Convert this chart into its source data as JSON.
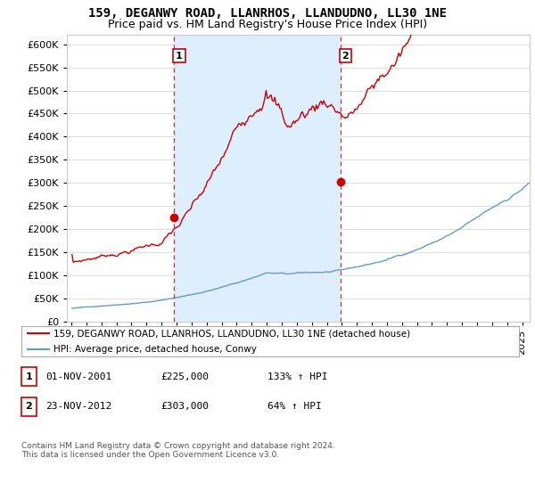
{
  "title": "159, DEGANWY ROAD, LLANRHOS, LLANDUDNO, LL30 1NE",
  "subtitle": "Price paid vs. HM Land Registry's House Price Index (HPI)",
  "ylim": [
    0,
    620000
  ],
  "yticks": [
    0,
    50000,
    100000,
    150000,
    200000,
    250000,
    300000,
    350000,
    400000,
    450000,
    500000,
    550000,
    600000
  ],
  "xlim_start": 1994.7,
  "xlim_end": 2025.5,
  "sale1_date": 2001.84,
  "sale1_price": 225000,
  "sale2_date": 2012.9,
  "sale2_price": 303000,
  "hpi_color": "#6699cc",
  "price_color": "#cc0000",
  "sale_dot_color": "#cc0000",
  "vline_color": "#cc0000",
  "shade_color": "#ddeeff",
  "background_color": "#ffffff",
  "grid_color": "#dddddd",
  "legend_label_price": "159, DEGANWY ROAD, LLANRHOS, LLANDUDNO, LL30 1NE (detached house)",
  "legend_label_hpi": "HPI: Average price, detached house, Conwy",
  "annotation1_label": "1",
  "annotation2_label": "2",
  "table_row1": [
    "1",
    "01-NOV-2001",
    "£225,000",
    "133% ↑ HPI"
  ],
  "table_row2": [
    "2",
    "23-NOV-2012",
    "£303,000",
    "64% ↑ HPI"
  ],
  "footer": "Contains HM Land Registry data © Crown copyright and database right 2024.\nThis data is licensed under the Open Government Licence v3.0.",
  "title_fontsize": 10,
  "subtitle_fontsize": 9,
  "tick_fontsize": 8
}
